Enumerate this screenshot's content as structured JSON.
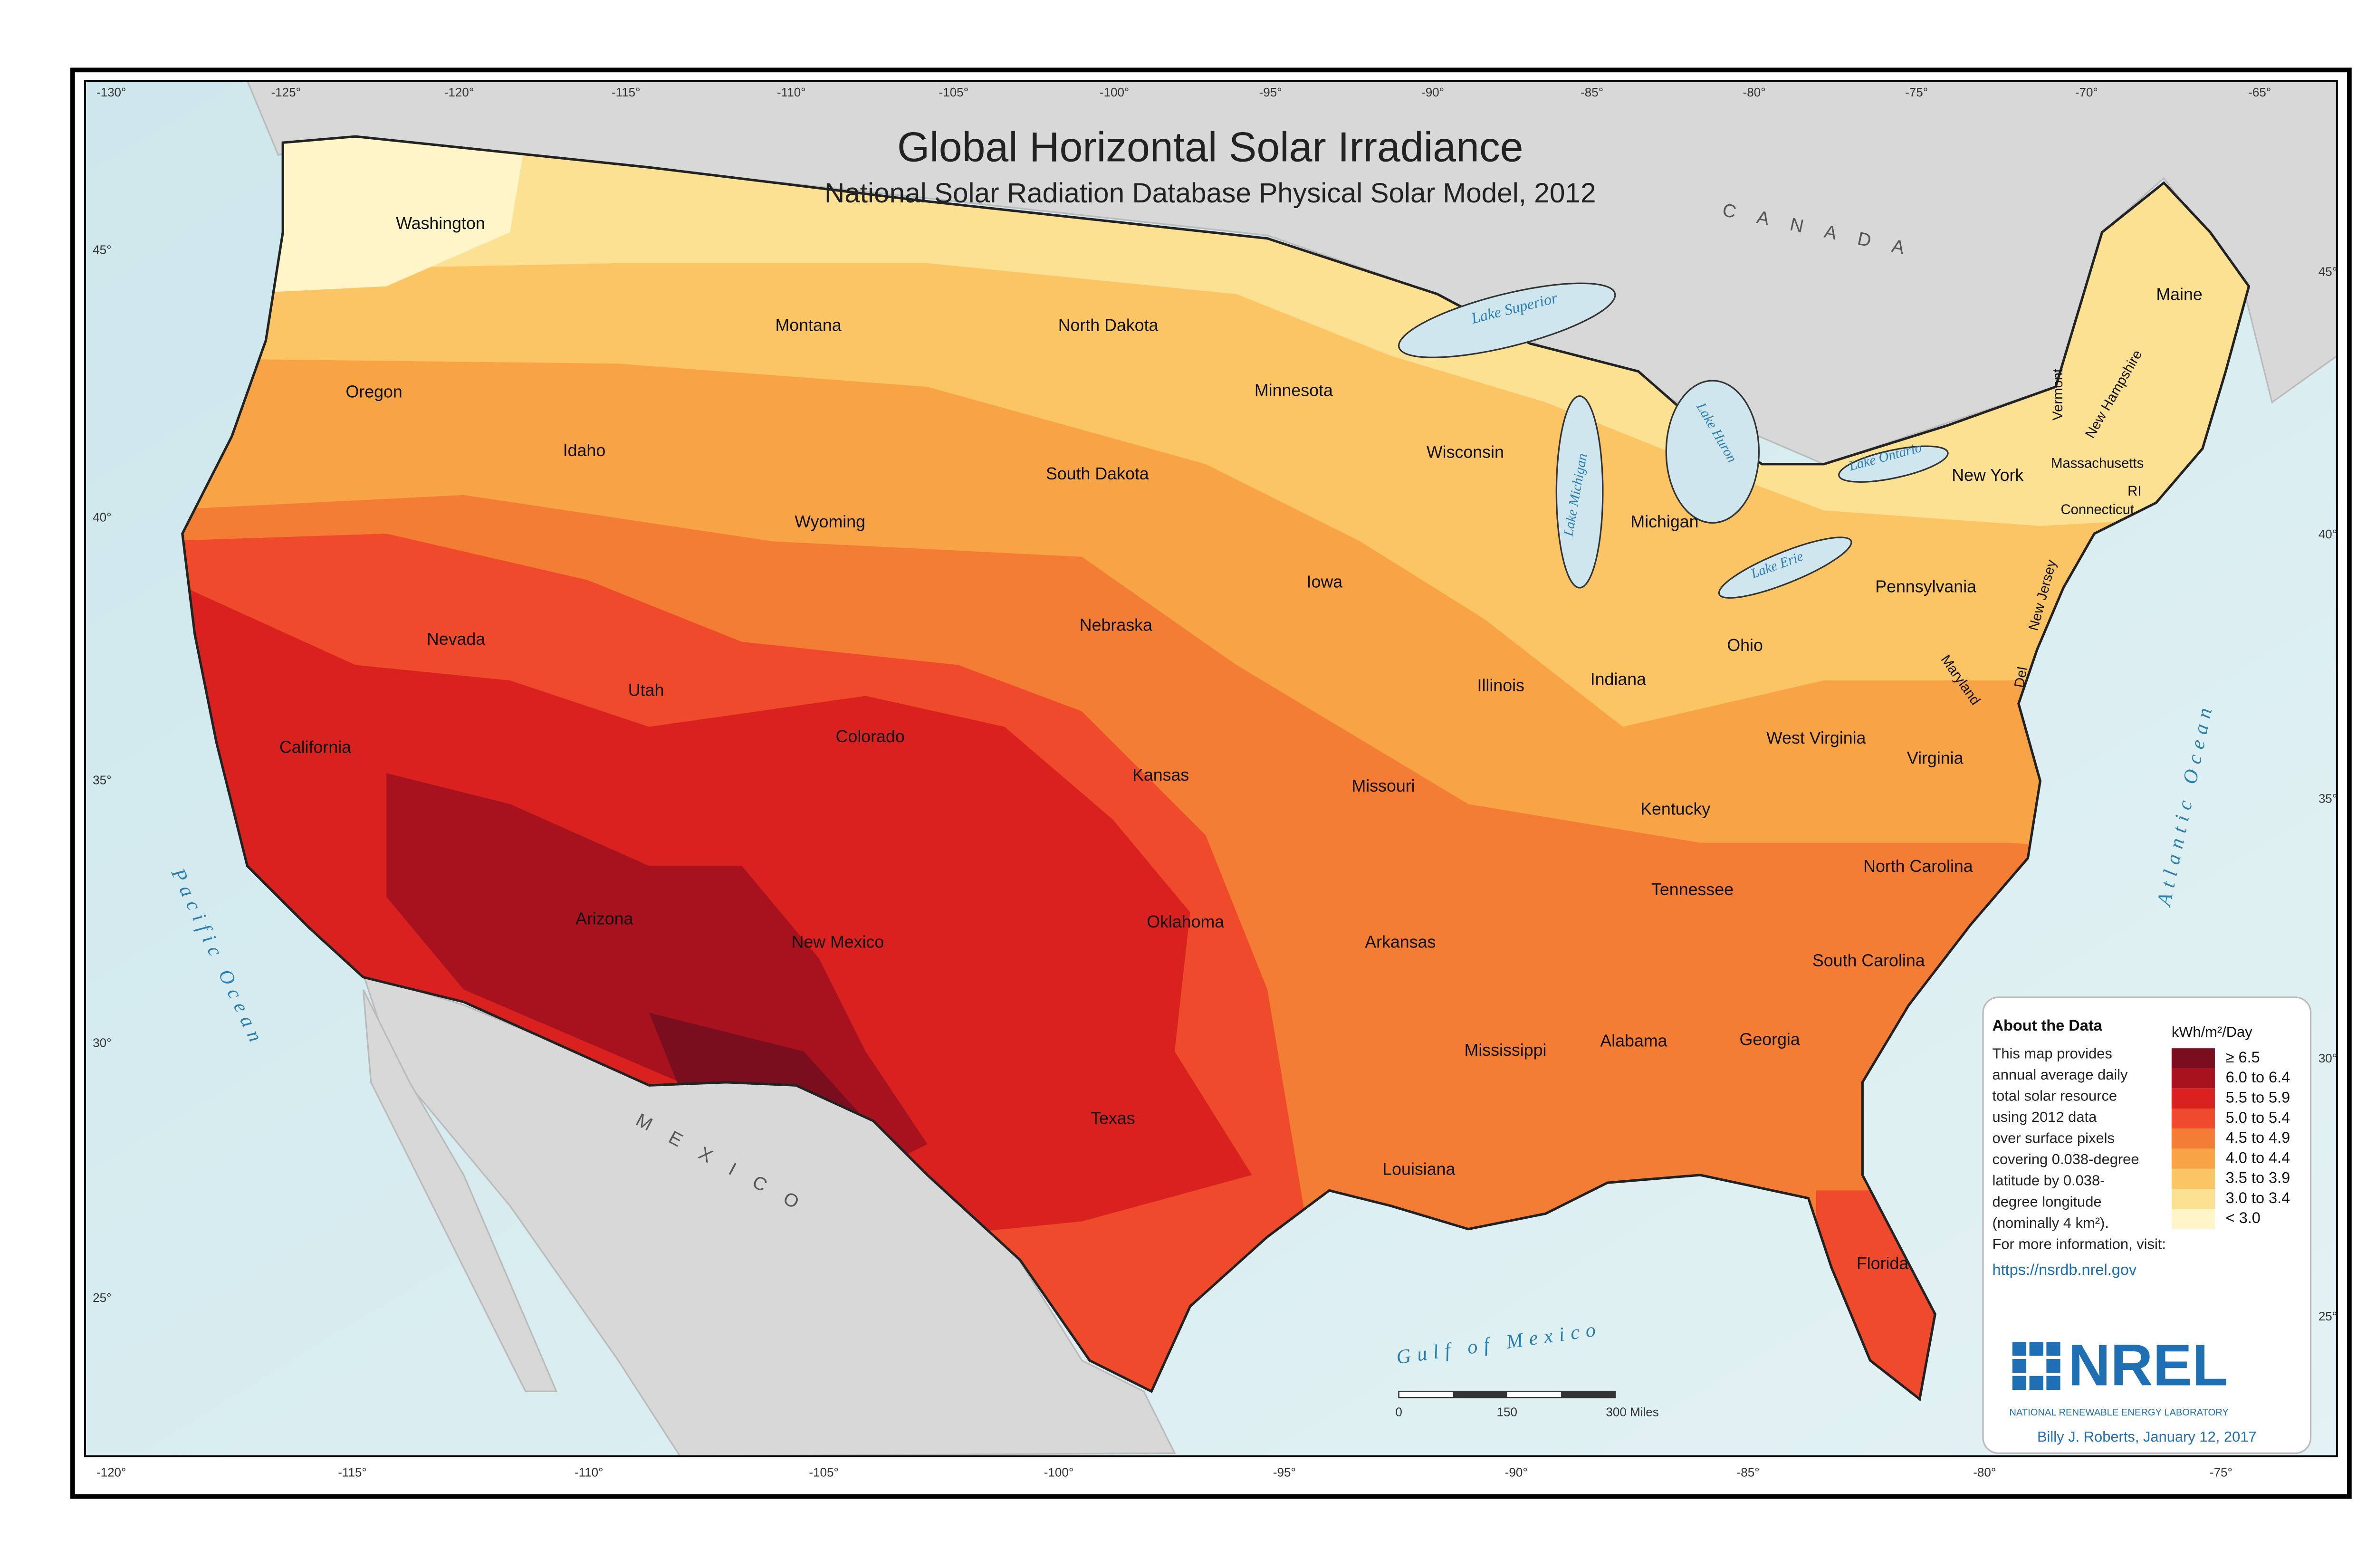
{
  "header": {
    "title": "Global Horizontal Solar Irradiance",
    "subtitle": "National Solar Radiation Database Physical Solar Model, 2012"
  },
  "graticule": {
    "top": [
      "-130°",
      "-125°",
      "-120°",
      "-115°",
      "-110°",
      "-105°",
      "-100°",
      "-95°",
      "-90°",
      "-85°",
      "-80°",
      "-75°",
      "-70°",
      "-65°"
    ],
    "bottom": [
      "-120°",
      "-115°",
      "-110°",
      "-105°",
      "-100°",
      "-95°",
      "-90°",
      "-85°",
      "-80°",
      "-75°"
    ],
    "left": [
      "45°",
      "40°",
      "35°",
      "30°",
      "25°"
    ],
    "right": [
      "45°",
      "40°",
      "35°",
      "30°",
      "25°"
    ]
  },
  "countries": [
    "CANADA",
    "MEXICO"
  ],
  "water": [
    "Lake Superior",
    "Lake Michigan",
    "Lake Huron",
    "Lake Erie",
    "Lake Ontario",
    "Pacific Ocean",
    "Atlantic Ocean",
    "Gulf of Mexico"
  ],
  "states": [
    "Washington",
    "Oregon",
    "California",
    "Nevada",
    "Idaho",
    "Montana",
    "Wyoming",
    "Utah",
    "Colorado",
    "Arizona",
    "New Mexico",
    "North Dakota",
    "South Dakota",
    "Nebraska",
    "Kansas",
    "Oklahoma",
    "Texas",
    "Minnesota",
    "Iowa",
    "Missouri",
    "Arkansas",
    "Louisiana",
    "Wisconsin",
    "Illinois",
    "Michigan",
    "Indiana",
    "Ohio",
    "Kentucky",
    "Tennessee",
    "Mississippi",
    "Alabama",
    "Georgia",
    "Florida",
    "South Carolina",
    "North Carolina",
    "Virginia",
    "West Virginia",
    "Pennsylvania",
    "New York",
    "Maine",
    "Vermont",
    "New Hampshire",
    "Massachusetts",
    "Connecticut",
    "RI",
    "New Jersey",
    "Del",
    "Maryland"
  ],
  "legend": {
    "heading": "About the Data",
    "body": [
      "This map provides",
      "annual average daily",
      "total solar resource",
      "using 2012 data",
      "over surface pixels",
      "covering 0.038-degree",
      "latitude by 0.038-",
      "degree longitude",
      "(nominally 4 km²).",
      "For more information, visit:"
    ],
    "link": "https://nsrdb.nrel.gov",
    "unit_title": "kWh/m²/Day",
    "items": [
      {
        "label": "≥ 6.5",
        "color": "#7a0d1e"
      },
      {
        "label": "6.0 to 6.4",
        "color": "#a8121f"
      },
      {
        "label": "5.5 to 5.9",
        "color": "#d92220"
      },
      {
        "label": "5.0 to 5.4",
        "color": "#ee4a2b"
      },
      {
        "label": "4.5 to 4.9",
        "color": "#f47d35"
      },
      {
        "label": "4.0 to 4.4",
        "color": "#f8a446"
      },
      {
        "label": "3.5 to 3.9",
        "color": "#fbc566"
      },
      {
        "label": "3.0 to 3.4",
        "color": "#fde193"
      },
      {
        "label": "< 3.0",
        "color": "#fff5c8"
      }
    ]
  },
  "scale_bar": [
    "0",
    "150",
    "300 Miles"
  ],
  "logo": {
    "name": "NREL",
    "subtitle": "NATIONAL RENEWABLE ENERGY LABORATORY"
  },
  "credit": "Billy J. Roberts, January 12, 2017"
}
